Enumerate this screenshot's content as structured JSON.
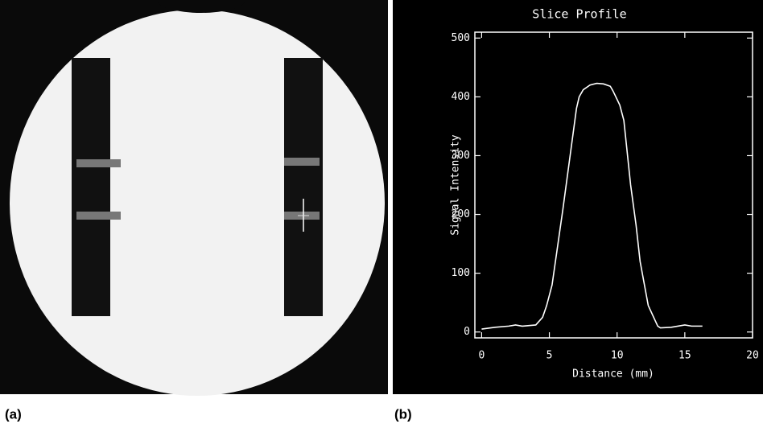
{
  "panel_labels": [
    "(a)",
    "(b)"
  ],
  "chart_data": {
    "type": "line",
    "title": "Slice Profile",
    "x_label": "Distance (mm)",
    "y_label": "Signal Intensity",
    "x": [
      0,
      1,
      2,
      2.5,
      3,
      4,
      4.5,
      4.8,
      5.2,
      6,
      7,
      7.2,
      7.5,
      8,
      8.5,
      9,
      9.5,
      9.7,
      10.2,
      10.5,
      11,
      11.4,
      11.7,
      12.3,
      13,
      13.2,
      14,
      15,
      15.5,
      16.3
    ],
    "series": [
      {
        "name": "Signal Intensity",
        "color": "#ffffff",
        "values": [
          5,
          8,
          10,
          12,
          10,
          12,
          25,
          45,
          80,
          209,
          380,
          400,
          412,
          420,
          423,
          422,
          418,
          410,
          386,
          360,
          250,
          182,
          120,
          45,
          10,
          7,
          8,
          12,
          10,
          10
        ]
      }
    ],
    "xlim": [
      -0.5,
      20
    ],
    "ylim": [
      -10,
      510
    ],
    "xticks": [
      0,
      5,
      10,
      15,
      20
    ],
    "yticks": [
      0,
      100,
      200,
      300,
      400,
      500
    ]
  }
}
